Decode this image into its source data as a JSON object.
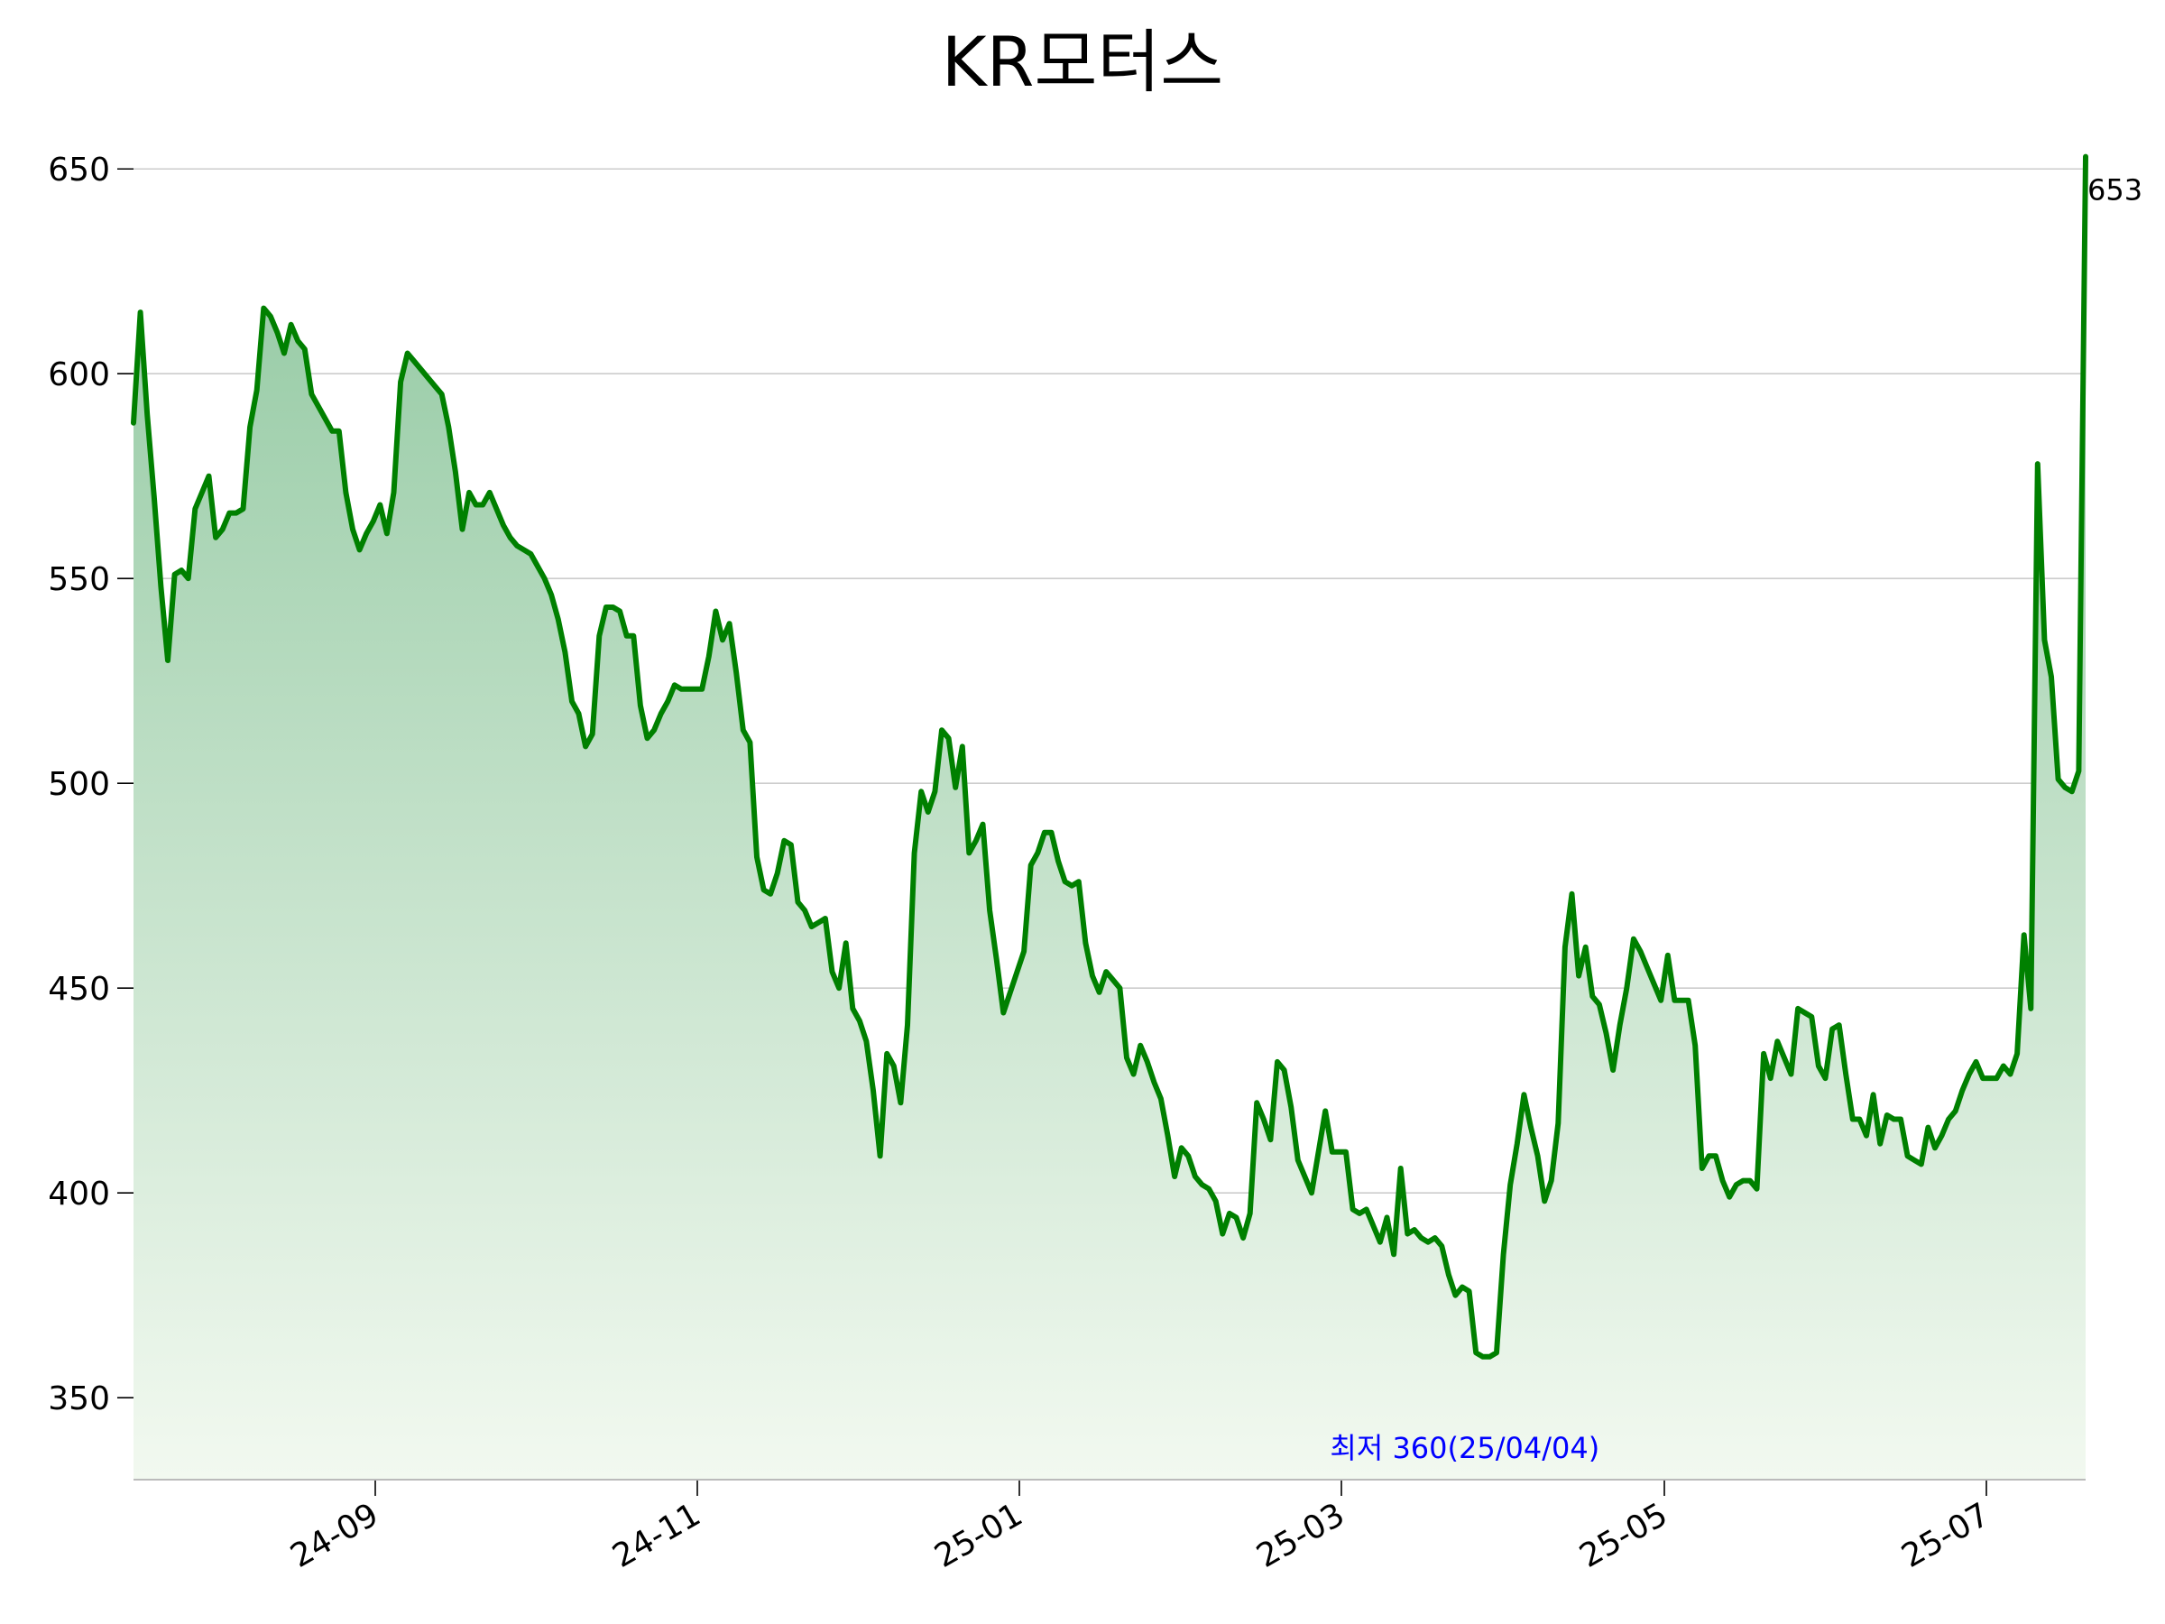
{
  "chart_data": {
    "type": "area",
    "title": "KR모터스",
    "xlabel": "",
    "ylabel": "",
    "ylim": [
      330,
      656
    ],
    "y_ticks": [
      350,
      400,
      450,
      500,
      550,
      600,
      650
    ],
    "x_ticks": [
      "24-09",
      "24-11",
      "25-01",
      "25-03",
      "25-05",
      "25-07"
    ],
    "grid": true,
    "colors": {
      "line": "#008000",
      "fill_top": "#8fc79f",
      "fill_bottom": "#f2f9f0",
      "min_annotation": "#0000ff",
      "last_annotation": "#000000"
    },
    "annotations": {
      "min_label": "최저 360(25/04/04)",
      "min_value": 360,
      "last_label": "653",
      "last_value": 653
    },
    "series": [
      {
        "values": [
          588,
          615,
          590,
          570,
          548,
          530,
          551,
          552,
          550,
          567,
          571,
          575,
          560,
          562,
          566,
          566,
          567,
          587,
          596,
          616,
          614,
          610,
          605,
          612,
          608,
          606,
          595,
          592,
          589,
          586,
          586,
          571,
          562,
          557,
          561,
          564,
          568,
          561,
          571,
          598,
          605,
          603,
          601,
          599,
          597,
          595,
          587,
          576,
          562,
          571,
          568,
          568,
          571,
          567,
          563,
          560,
          558,
          557,
          556,
          553,
          550,
          546,
          540,
          532,
          520,
          517,
          509,
          512,
          536,
          543,
          543,
          542,
          536,
          536,
          519,
          511,
          513,
          517,
          520,
          524,
          523,
          523,
          523,
          523,
          531,
          542,
          535,
          539,
          527,
          513,
          510,
          482,
          474,
          473,
          478,
          486,
          485,
          471,
          469,
          465,
          466,
          467,
          454,
          450,
          461,
          445,
          442,
          437,
          425,
          409,
          434,
          431,
          422,
          441,
          483,
          498,
          493,
          498,
          513,
          511,
          499,
          509,
          483,
          486,
          490,
          469,
          457,
          444,
          449,
          454,
          459,
          480,
          483,
          488,
          488,
          481,
          476,
          475,
          476,
          461,
          453,
          449,
          454,
          452,
          450,
          433,
          429,
          436,
          432,
          427,
          423,
          414,
          404,
          411,
          409,
          404,
          402,
          401,
          398,
          390,
          395,
          394,
          389,
          395,
          422,
          418,
          413,
          432,
          430,
          421,
          408,
          404,
          400,
          410,
          420,
          410,
          410,
          410,
          396,
          395,
          396,
          392,
          388,
          394,
          385,
          406,
          390,
          391,
          389,
          388,
          389,
          387,
          380,
          375,
          377,
          376,
          361,
          360,
          360,
          361,
          385,
          402,
          412,
          424,
          416,
          409,
          398,
          403,
          417,
          460,
          473,
          453,
          460,
          448,
          446,
          439,
          430,
          441,
          450,
          462,
          459,
          455,
          451,
          447,
          458,
          447,
          447,
          447,
          436,
          406,
          409,
          409,
          403,
          399,
          402,
          403,
          403,
          401,
          434,
          428,
          437,
          433,
          429,
          445,
          444,
          443,
          431,
          428,
          440,
          441,
          429,
          418,
          418,
          414,
          424,
          412,
          419,
          418,
          418,
          409,
          408,
          407,
          416,
          411,
          414,
          418,
          420,
          425,
          429,
          432,
          428,
          428,
          428,
          431,
          429,
          434,
          463,
          445,
          578,
          535,
          526,
          501,
          499,
          498,
          503,
          653
        ]
      }
    ]
  }
}
